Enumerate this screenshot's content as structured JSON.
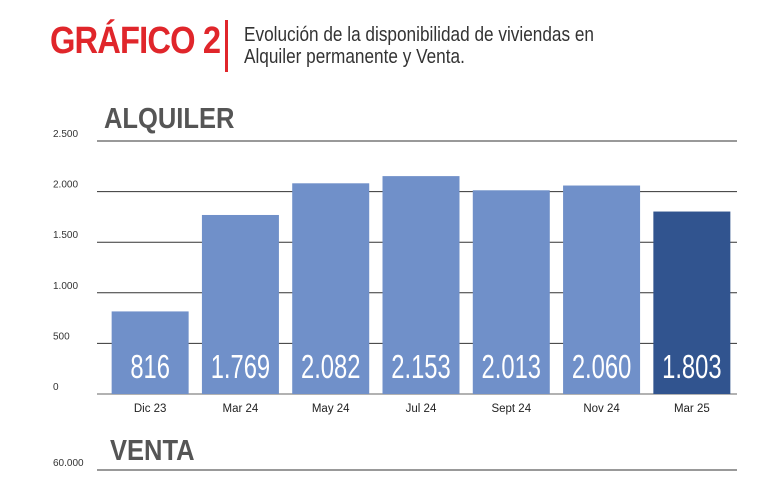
{
  "header": {
    "label": "GRÁFICO 2",
    "title": "Evolución de la disponibilidad de viviendas en Alquiler permanente y Venta."
  },
  "chart_data": [
    {
      "type": "bar",
      "title": "ALQUILER",
      "categories": [
        "Dic 23",
        "Mar 24",
        "May 24",
        "Jul 24",
        "Sept 24",
        "Nov 24",
        "Mar 25"
      ],
      "values": [
        816,
        1769,
        2082,
        2153,
        2013,
        2060,
        1803
      ],
      "data_labels": [
        "816",
        "1.769",
        "2.082",
        "2.153",
        "2.013",
        "2.060",
        "1.803"
      ],
      "yticks": [
        0,
        500,
        1000,
        1500,
        2000,
        2500
      ],
      "ytick_labels": [
        "0",
        "500",
        "1.000",
        "1.500",
        "2.000",
        "2.500"
      ],
      "ylim": [
        0,
        2500
      ],
      "grid": true,
      "colors": {
        "bar": "#7090c9",
        "highlight": "#31548f"
      },
      "highlight_index": 6
    },
    {
      "type": "bar",
      "title": "VENTA",
      "ytick_labels": [
        "60.000"
      ]
    }
  ]
}
